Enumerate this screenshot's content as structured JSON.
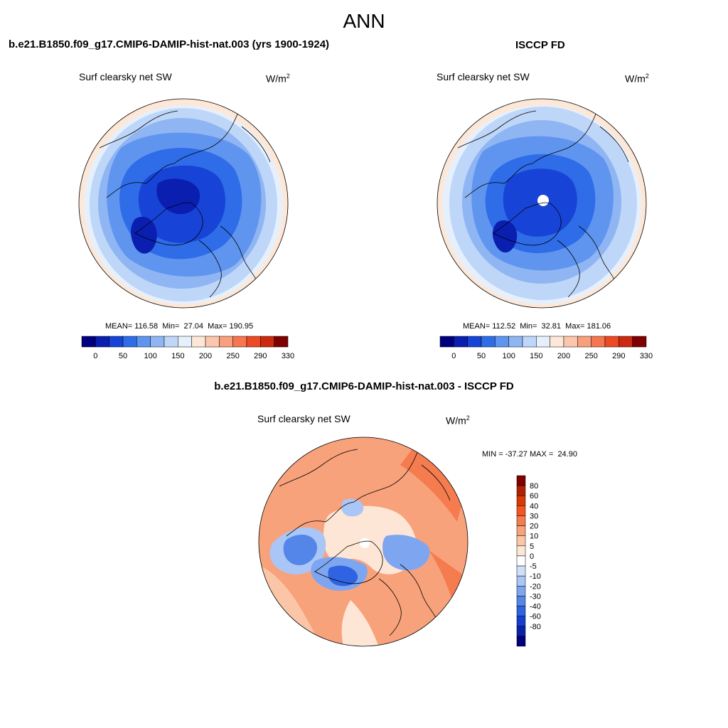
{
  "title": "ANN",
  "panels": {
    "model": {
      "title": "b.e21.B1850.f09_g17.CMIP6-DAMIP-hist-nat.003 (yrs 1900-1924)",
      "variable": "Surf clearsky net SW",
      "units": "W/m",
      "units_exp": "2",
      "mean_label": "MEAN=",
      "mean": "116.58",
      "min_label": "Min=",
      "min": "27.04",
      "max_label": "Max=",
      "max": "190.95"
    },
    "obs": {
      "title": "ISCCP FD",
      "variable": "Surf clearsky net SW",
      "units": "W/m",
      "units_exp": "2",
      "mean_label": "MEAN=",
      "mean": "112.52",
      "min_label": "Min=",
      "min": "32.81",
      "max_label": "Max=",
      "max": "181.06"
    },
    "diff": {
      "title": "b.e21.B1850.f09_g17.CMIP6-DAMIP-hist-nat.003 - ISCCP FD",
      "variable": "Surf clearsky net SW",
      "units": "W/m",
      "units_exp": "2",
      "min_label": "MIN =",
      "min": "-37.27",
      "max_label": "MAX =",
      "max": "24.90"
    }
  },
  "colorbars": {
    "abs": {
      "colors": [
        "#00007f",
        "#0a1fb0",
        "#1744d6",
        "#2f6ce8",
        "#5f95ef",
        "#8fb5f3",
        "#bed6f8",
        "#e6f0fc",
        "#fde8d8",
        "#fbc6ab",
        "#f8a07c",
        "#f5764f",
        "#ec4a25",
        "#cc2a10",
        "#7f0000"
      ],
      "labels": [
        "0",
        "50",
        "100",
        "150",
        "200",
        "250",
        "290",
        "330"
      ]
    },
    "diff": {
      "colors": [
        "#7f0000",
        "#b22200",
        "#d93a06",
        "#f55520",
        "#f57c4f",
        "#f8a27c",
        "#fbc6a8",
        "#fde6d6",
        "#ffffff",
        "#cfe0fb",
        "#a9c6f6",
        "#7ea6f0",
        "#5486ea",
        "#2f63e2",
        "#163fd0",
        "#0a21a8",
        "#00007f"
      ],
      "labels": [
        "80",
        "60",
        "40",
        "30",
        "20",
        "10",
        "5",
        "0",
        "-5",
        "-10",
        "-20",
        "-30",
        "-40",
        "-60",
        "-80"
      ]
    }
  }
}
